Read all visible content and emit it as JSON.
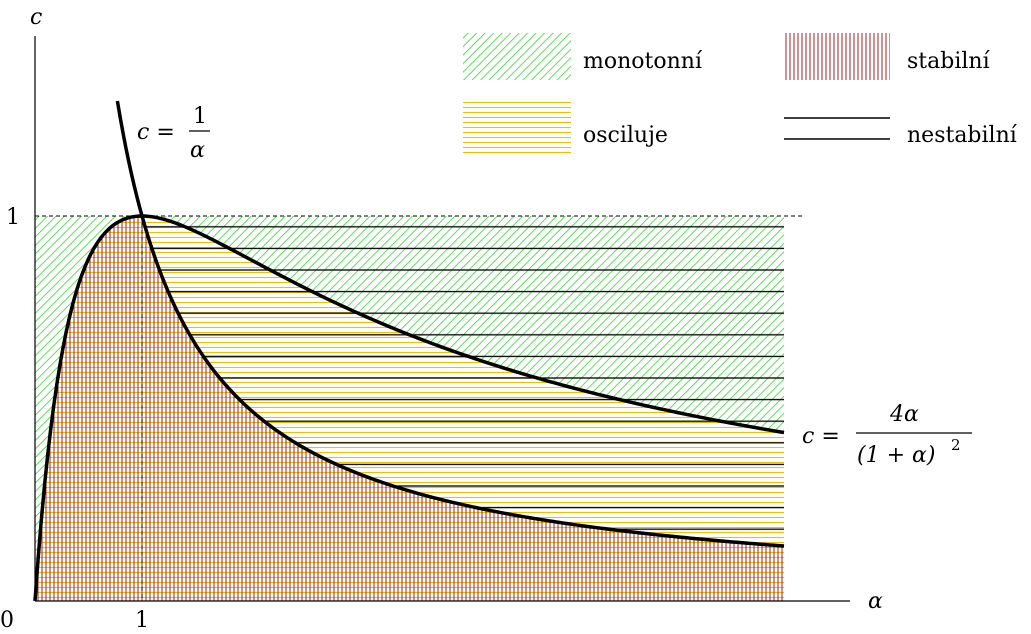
{
  "axes": {
    "x_label": "α",
    "y_label": "c",
    "origin_label": "0",
    "x_tick_label": "1",
    "y_tick_label": "1"
  },
  "curves": {
    "hyperbola": {
      "lhs": "c =",
      "num": "1",
      "den": "α"
    },
    "boundary": {
      "lhs": "c =",
      "num": "4α",
      "den": "(1 + α)",
      "den_exp": "2"
    }
  },
  "legend": {
    "monotonic": "monotonní",
    "oscillating": "osciluje",
    "stable": "stabilní",
    "unstable": "nestabilní"
  },
  "colors": {
    "monotonic_hatch": "#38d238",
    "oscillating_hatch": "#f0c000",
    "stable_hatch": "#a52020",
    "unstable_lines": "#000000"
  },
  "domain": {
    "alpha_min": 0,
    "alpha_max": 7,
    "c_max": 1
  }
}
